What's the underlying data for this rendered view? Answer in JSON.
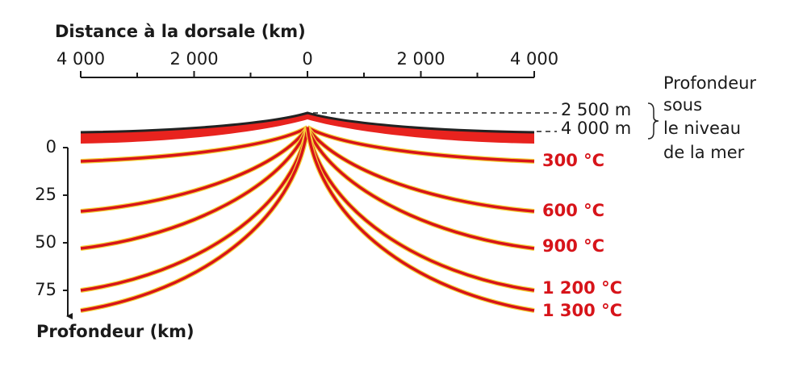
{
  "title": "Distance à la dorsale (km)",
  "x_axis": {
    "ticks": [
      "4 000",
      "2 000",
      "0",
      "2 000",
      "4 000"
    ]
  },
  "y_axis": {
    "label": "Profondeur (km)",
    "ticks": [
      "0",
      "25",
      "50",
      "75"
    ]
  },
  "sea_depth": {
    "labels": [
      "2 500 m",
      "4 000 m"
    ],
    "caption": [
      "Profondeur",
      "sous",
      "le niveau",
      "de la mer"
    ]
  },
  "isotherms": [
    "300 °C",
    "600 °C",
    "900 °C",
    "1 200 °C",
    "1 300 °C"
  ]
}
